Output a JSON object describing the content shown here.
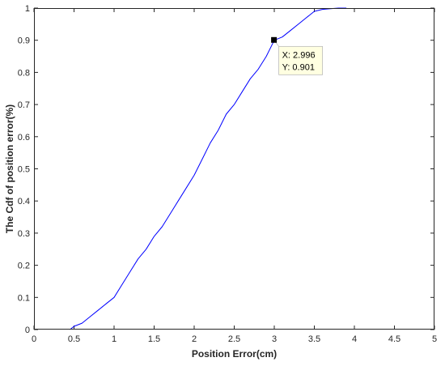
{
  "chart_data": {
    "type": "line",
    "title": "",
    "xlabel": "Position Error(cm)",
    "ylabel": "The Cdf of position error(%)",
    "xlim": [
      0,
      5
    ],
    "ylim": [
      0,
      1
    ],
    "xticks": [
      "0",
      "0.5",
      "1",
      "1.5",
      "2",
      "2.5",
      "3",
      "3.5",
      "4",
      "4.5",
      "5"
    ],
    "yticks": [
      "0",
      "0.1",
      "0.2",
      "0.3",
      "0.4",
      "0.5",
      "0.6",
      "0.7",
      "0.8",
      "0.9",
      "1"
    ],
    "grid": false,
    "series": [
      {
        "color": "#0000ff",
        "x": [
          0.45,
          0.5,
          0.6,
          0.7,
          0.8,
          0.9,
          1.0,
          1.1,
          1.2,
          1.3,
          1.4,
          1.5,
          1.6,
          1.7,
          1.8,
          1.9,
          2.0,
          2.1,
          2.2,
          2.3,
          2.4,
          2.5,
          2.6,
          2.7,
          2.8,
          2.9,
          3.0,
          3.1,
          3.2,
          3.3,
          3.4,
          3.5,
          3.6,
          3.7,
          3.8,
          3.9
        ],
        "y": [
          0.0,
          0.01,
          0.02,
          0.04,
          0.06,
          0.08,
          0.1,
          0.14,
          0.18,
          0.22,
          0.25,
          0.29,
          0.32,
          0.36,
          0.4,
          0.44,
          0.48,
          0.53,
          0.58,
          0.62,
          0.67,
          0.7,
          0.74,
          0.78,
          0.81,
          0.85,
          0.9,
          0.91,
          0.93,
          0.95,
          0.97,
          0.99,
          0.996,
          0.998,
          1.0,
          1.0
        ]
      }
    ],
    "datatip": {
      "x": 2.996,
      "y": 0.901,
      "x_label": "X: 2.996",
      "y_label": "Y: 0.901"
    }
  }
}
